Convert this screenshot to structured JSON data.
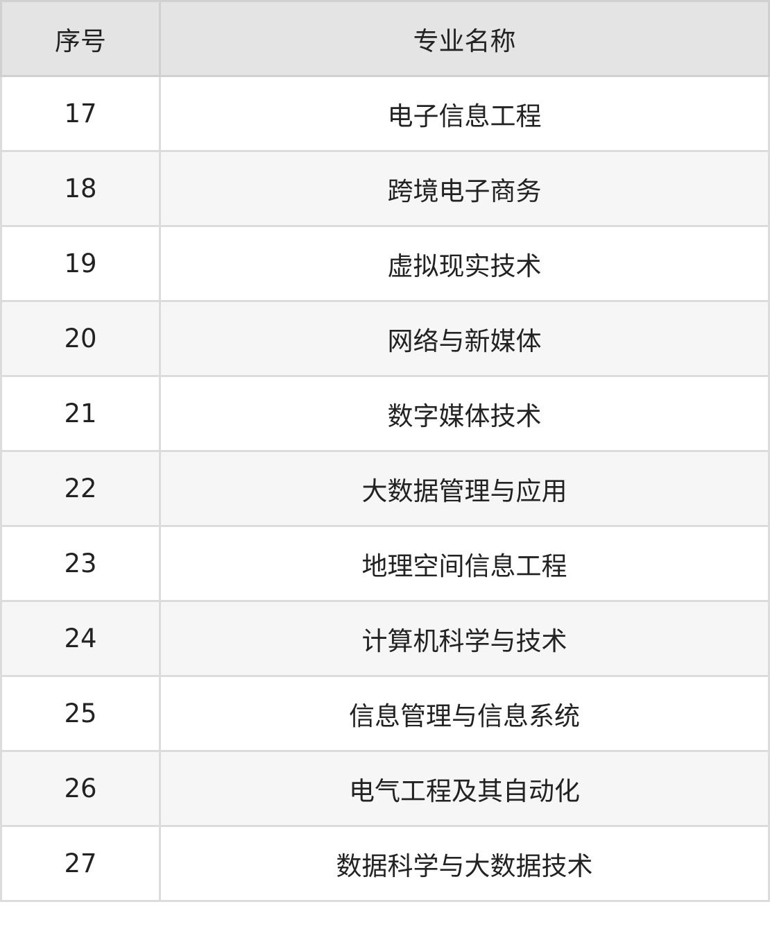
{
  "table": {
    "headers": [
      "序号",
      "专业名称"
    ],
    "rows": [
      [
        "17",
        "电子信息工程"
      ],
      [
        "18",
        "跨境电子商务"
      ],
      [
        "19",
        "虚拟现实技术"
      ],
      [
        "20",
        "网络与新媒体"
      ],
      [
        "21",
        "数字媒体技术"
      ],
      [
        "22",
        "大数据管理与应用"
      ],
      [
        "23",
        "地理空间信息工程"
      ],
      [
        "24",
        "计算机科学与技术"
      ],
      [
        "25",
        "信息管理与信息系统"
      ],
      [
        "26",
        "电气工程及其自动化"
      ],
      [
        "27",
        "数据科学与大数据技术"
      ]
    ]
  }
}
